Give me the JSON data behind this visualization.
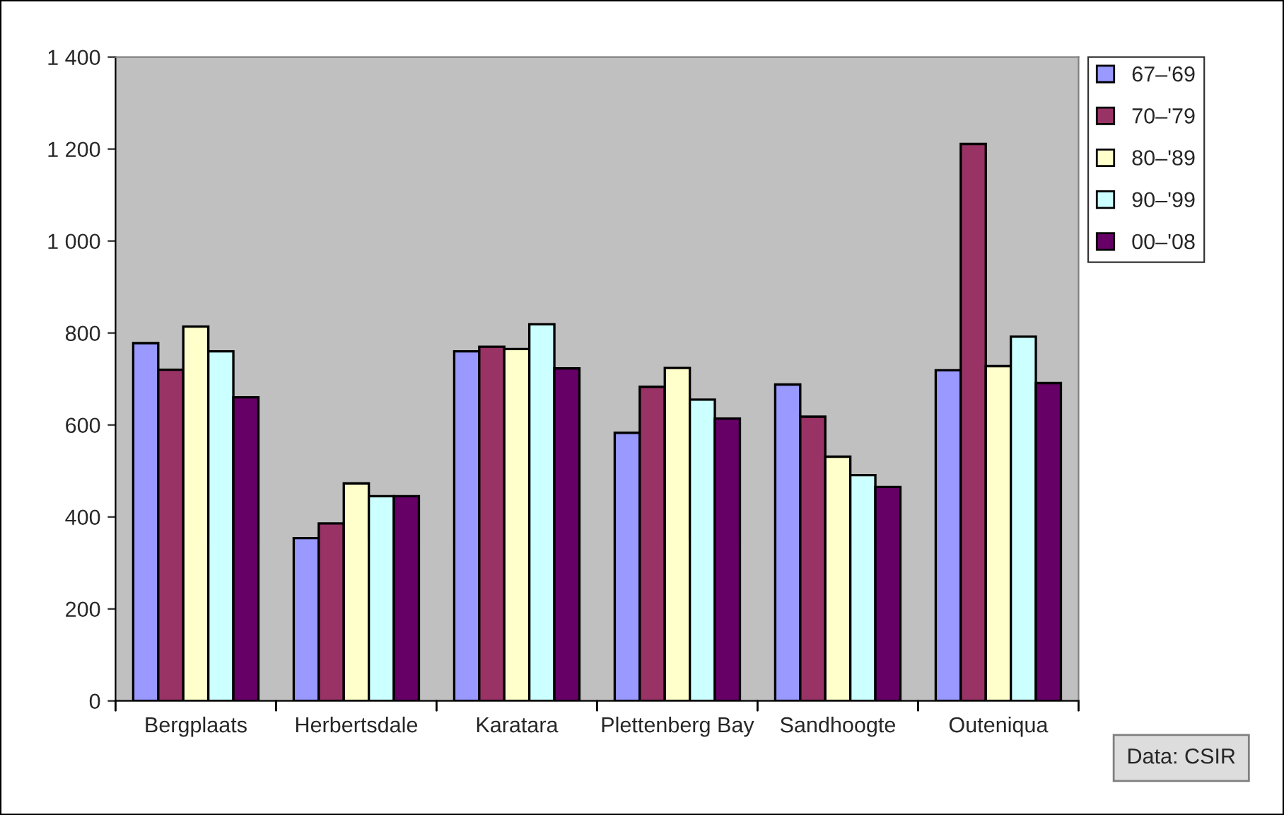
{
  "chart_data": {
    "type": "bar",
    "categories": [
      "Bergplaats",
      "Herbertsdale",
      "Karatara",
      "Plettenberg Bay",
      "Sandhoogte",
      "Outeniqua"
    ],
    "series": [
      {
        "name": "67–'69",
        "color": "#9999ff",
        "values": [
          778,
          354,
          760,
          583,
          688,
          719
        ]
      },
      {
        "name": "70–'79",
        "color": "#993366",
        "values": [
          720,
          386,
          770,
          683,
          618,
          1211
        ]
      },
      {
        "name": "80–'89",
        "color": "#ffffcc",
        "values": [
          814,
          473,
          765,
          724,
          531,
          728
        ]
      },
      {
        "name": "90–'99",
        "color": "#ccffff",
        "values": [
          760,
          445,
          819,
          655,
          491,
          792
        ]
      },
      {
        "name": "00–'08",
        "color": "#660066",
        "values": [
          660,
          445,
          723,
          614,
          465,
          691
        ]
      }
    ],
    "ylim": [
      0,
      1400
    ],
    "yticks": [
      0,
      200,
      400,
      600,
      800,
      {
        "value": 1000,
        "label": "1 000"
      },
      {
        "value": 1200,
        "label": "1 200"
      },
      {
        "value": 1400,
        "label": "1 400"
      }
    ],
    "annotations": [
      "Data: CSIR"
    ],
    "legend": "right",
    "grid": false
  }
}
